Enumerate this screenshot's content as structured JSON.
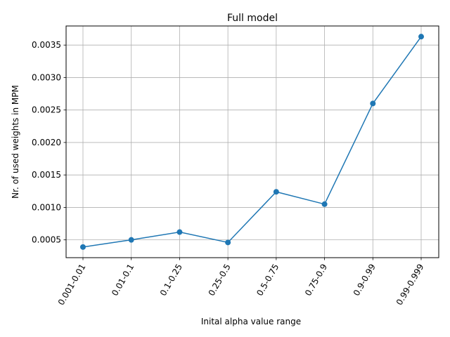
{
  "chart_data": {
    "type": "line",
    "title": "Full model",
    "xlabel": "Inital alpha value range",
    "ylabel": "Nr. of used weights in MPM",
    "categories": [
      "0.001-0.01",
      "0.01-0.1",
      "0.1-0.25",
      "0.25-0.5",
      "0.5-0.75",
      "0.75-0.9",
      "0.9-0.99",
      "0.99-0.999"
    ],
    "series": [
      {
        "values": [
          0.00039,
          0.0005,
          0.00062,
          0.00046,
          0.00124,
          0.00105,
          0.0026,
          0.00363
        ],
        "color": "#1f77b4",
        "marker": "circle"
      }
    ],
    "yticks": [
      "0.0005",
      "0.0010",
      "0.0015",
      "0.0020",
      "0.0025",
      "0.0030",
      "0.0035"
    ],
    "ylim": [
      0.000226,
      0.003794
    ],
    "grid": true,
    "legend": "none"
  }
}
